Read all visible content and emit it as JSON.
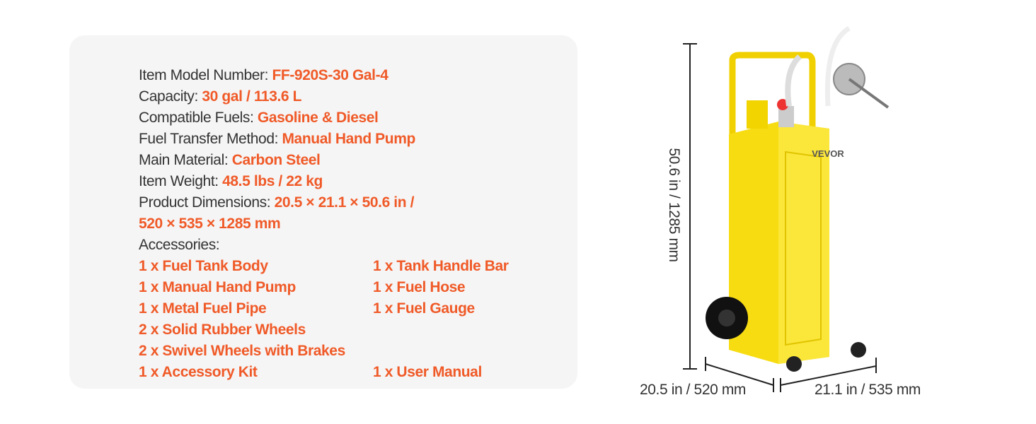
{
  "specs": [
    {
      "label": "Item Model Number: ",
      "value": "FF-920S-30 Gal-4"
    },
    {
      "label": "Capacity:  ",
      "value": "30 gal / 113.6 L"
    },
    {
      "label": "Compatible Fuels: ",
      "value": "Gasoline & Diesel"
    },
    {
      "label": "Fuel Transfer Method: ",
      "value": "Manual Hand Pump"
    },
    {
      "label": "Main Material: ",
      "value": "Carbon Steel"
    },
    {
      "label": "Item Weight: ",
      "value": "48.5 lbs / 22 kg"
    },
    {
      "label": "Product Dimensions: ",
      "value": "20.5 × 21.1 × 50.6 in /"
    },
    {
      "value": "520 × 535 × 1285 mm"
    }
  ],
  "accessories_heading": "Accessories:",
  "accessories": [
    [
      "1 x Fuel Tank Body",
      "1 x Tank Handle Bar"
    ],
    [
      "1 x Manual Hand Pump",
      "1 x Fuel Hose"
    ],
    [
      "1 x Metal Fuel Pipe",
      "1 x Fuel Gauge"
    ],
    [
      "2 x Solid Rubber Wheels"
    ],
    [
      "2 x Swivel Wheels with Brakes"
    ],
    [
      "1 x Accessory Kit",
      "1 x User Manual"
    ]
  ],
  "brand": "VEVOR",
  "dimensions": {
    "height": "50.6 in / 1285 mm",
    "width": "20.5 in / 520 mm",
    "depth": "21.1 in / 535 mm"
  }
}
